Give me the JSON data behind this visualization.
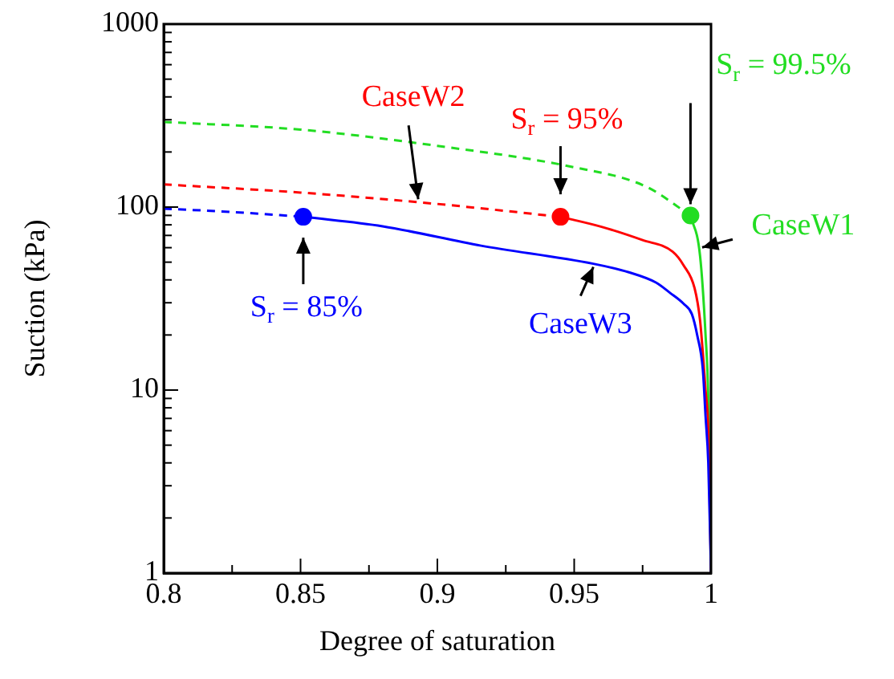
{
  "chart_data": {
    "type": "line",
    "xlabel": "Degree of saturation",
    "ylabel": "Suction (kPa)",
    "log": "y",
    "grid": false,
    "legend": false,
    "xlim": [
      0.8,
      1.0
    ],
    "xticks": [
      0.8,
      {
        "value": 0.825,
        "label": null
      },
      0.85,
      {
        "value": 0.875,
        "label": null
      },
      0.9,
      {
        "value": 0.925,
        "label": null
      },
      0.95,
      {
        "value": 0.975,
        "label": null
      },
      1
    ],
    "ylim": [
      1,
      1000
    ],
    "yticks": [
      1,
      {
        "value": 2,
        "label": null
      },
      {
        "value": 3,
        "label": null
      },
      {
        "value": 4,
        "label": null
      },
      {
        "value": 5,
        "label": null
      },
      {
        "value": 6,
        "label": null
      },
      {
        "value": 7,
        "label": null
      },
      {
        "value": 8,
        "label": null
      },
      {
        "value": 9,
        "label": null
      },
      10,
      {
        "value": 20,
        "label": null
      },
      {
        "value": 30,
        "label": null
      },
      {
        "value": 40,
        "label": null
      },
      {
        "value": 50,
        "label": null
      },
      {
        "value": 60,
        "label": null
      },
      {
        "value": 70,
        "label": null
      },
      {
        "value": 80,
        "label": null
      },
      {
        "value": 90,
        "label": null
      },
      100,
      {
        "value": 200,
        "label": null
      },
      {
        "value": 300,
        "label": null
      },
      {
        "value": 400,
        "label": null
      },
      {
        "value": 500,
        "label": null
      },
      {
        "value": 600,
        "label": null
      },
      {
        "value": 700,
        "label": null
      },
      {
        "value": 800,
        "label": null
      },
      {
        "value": 900,
        "label": null
      },
      1000
    ],
    "series": [
      {
        "type": "line",
        "line_style": "dashed",
        "color": "#0000ff",
        "x": [
          0.8,
          0.825,
          0.851
        ],
        "values": [
          98,
          94,
          88.5
        ]
      },
      {
        "type": "line",
        "line_style": "solid",
        "color": "#0000ff",
        "x": [
          0.851,
          0.88,
          0.916,
          0.957,
          0.97,
          0.98,
          0.985,
          0.99,
          0.993,
          0.995,
          0.997,
          0.998,
          0.999,
          1.0
        ],
        "values": [
          88.5,
          78.5,
          61.5,
          49,
          44,
          38.6,
          34,
          29.6,
          26,
          19.8,
          13,
          7.2,
          4,
          1
        ]
      },
      {
        "type": "scatter",
        "marker": "circle",
        "color": "#0000ff",
        "x": [
          0.851
        ],
        "values": [
          88.5
        ]
      },
      {
        "type": "line",
        "line_style": "dashed",
        "color": "#ff0000",
        "x": [
          0.8,
          0.85,
          0.9,
          0.945
        ],
        "values": [
          133,
          120,
          104,
          88.5
        ]
      },
      {
        "type": "line",
        "line_style": "solid",
        "color": "#ff0000",
        "x": [
          0.945,
          0.96,
          0.975,
          0.986,
          0.99,
          0.994,
          0.996,
          0.997,
          0.998,
          0.999,
          1.0
        ],
        "values": [
          88.5,
          78,
          66,
          57,
          48,
          36,
          24,
          16,
          10,
          6,
          1
        ]
      },
      {
        "type": "scatter",
        "marker": "circle",
        "color": "#ff0000",
        "x": [
          0.945
        ],
        "values": [
          88.5
        ]
      },
      {
        "type": "line",
        "line_style": "dashed",
        "color": "#22dd22",
        "x": [
          0.8,
          0.85,
          0.9,
          0.95,
          0.976,
          0.9925
        ],
        "values": [
          292,
          265,
          216,
          165,
          130,
          90
        ]
      },
      {
        "type": "line",
        "line_style": "solid",
        "color": "#22dd22",
        "x": [
          0.9925,
          0.996,
          0.998,
          0.999,
          1.0
        ],
        "values": [
          90,
          54,
          20,
          9,
          1
        ]
      },
      {
        "type": "scatter",
        "marker": "circle",
        "color": "#22dd22",
        "x": [
          0.9925
        ],
        "values": [
          90
        ]
      }
    ],
    "annotations": [
      {
        "text": "CaseW2",
        "x": 0.893,
        "y": 106
      },
      {
        "text": "S$_{r}$ = 95%",
        "x": 0.945,
        "y": 88.5
      },
      {
        "text": "S$_{r}$ = 99.5%",
        "x": 0.9925,
        "y": 90
      },
      {
        "text": "CaseW1",
        "x": 0.995,
        "y": 64
      },
      {
        "text": "S$_{r}$ = 85%",
        "x": 0.851,
        "y": 88.5
      },
      {
        "text": "CaseW3",
        "x": 0.957,
        "y": 49
      }
    ]
  }
}
